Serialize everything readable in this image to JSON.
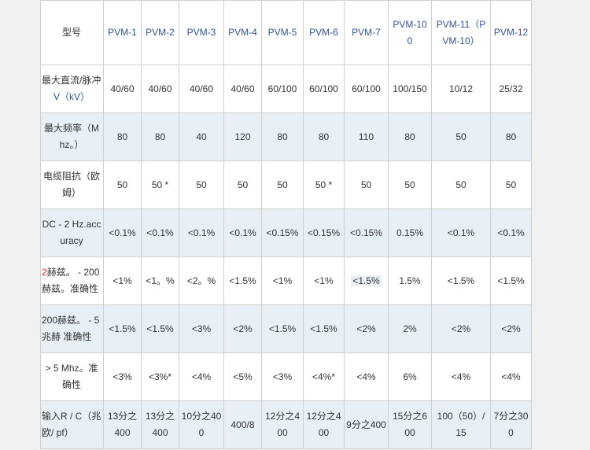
{
  "header": {
    "label": "型号",
    "models": [
      "PVM-1",
      "PVM-2",
      "PVM-3",
      "PVM-4",
      "PVM-5",
      "PVM-6",
      "PVM-7",
      "PVM-100",
      "PVM-11（PVM-10）",
      "PVM-12"
    ]
  },
  "rows": [
    {
      "label_a": "最大直流/脉冲",
      "label_b": "V（kV）",
      "values": [
        "40/60",
        "40/60",
        "40/60",
        "40/60",
        "60/100",
        "60/100",
        "60/100",
        "100/150",
        "10/12",
        "25/32"
      ]
    },
    {
      "label": "最大频率（Mhz。）",
      "values": [
        "80",
        "80",
        "40",
        "120",
        "80",
        "80",
        "110",
        "80",
        "50",
        "80"
      ]
    },
    {
      "label": "电缆阻抗（欧姆）",
      "values": [
        "50",
        "50 *",
        "50",
        "50",
        "50",
        "50 *",
        "50",
        "50",
        "50",
        "50"
      ]
    },
    {
      "label": "DC - 2 Hz.accuracy",
      "values": [
        "<0.1%",
        "<0.1%",
        "<0.1%",
        "<0.1%",
        "<0.15%",
        "<0.15%",
        "<0.15%",
        "0.15%",
        "<0.1%",
        "<0.1%"
      ]
    },
    {
      "label_red": "2",
      "label_rest": "赫兹。 - 200 赫兹。准确性",
      "values": [
        "<1%",
        "<1。%",
        "<2。%",
        "<1.5%",
        "<1%",
        "<1%",
        "<1.5%",
        "1.5%",
        "<1.5%",
        "<1.5%"
      ]
    },
    {
      "label": "200赫兹。 - 5 兆赫 准确性",
      "values": [
        "<1.5%",
        "<1.5%",
        "<3%",
        "<2%",
        "<1.5%",
        "<1.5%",
        "<2%",
        "2%",
        "<2%",
        "<2%"
      ]
    },
    {
      "label": "> 5 Mhz。准确性",
      "values": [
        "<3%",
        "<3%*",
        "<4%",
        "<5%",
        "<3%",
        "<4%*",
        "<4%",
        "6%",
        "<4%",
        "<4%"
      ]
    },
    {
      "label": "输入R / C（兆欧/ pf）",
      "values": [
        "13分之400",
        "13分之400",
        "10分之400",
        "400/8",
        "12分之400",
        "12分之400",
        "9分之400",
        "15分之600",
        "100（50）/ 15",
        "7分之300"
      ]
    }
  ]
}
